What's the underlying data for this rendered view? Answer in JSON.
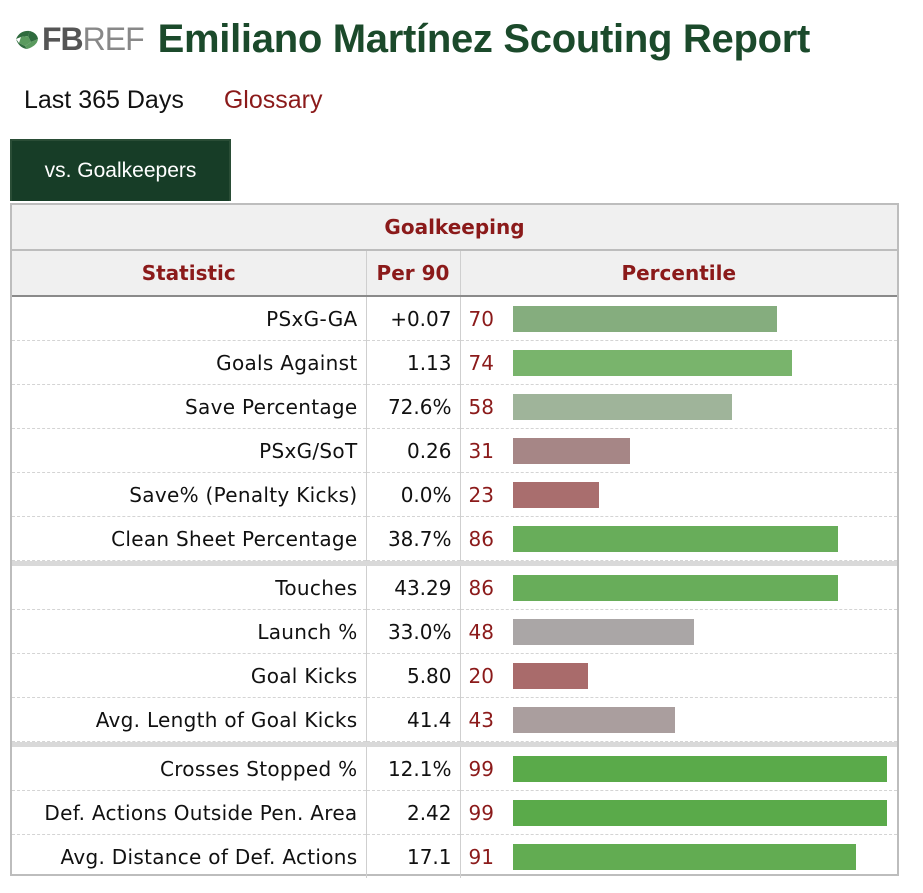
{
  "header": {
    "logo_fb": "FB",
    "logo_ref": "REF",
    "title": "Emiliano Martínez Scouting Report"
  },
  "subnav": {
    "period": "Last 365 Days",
    "glossary": "Glossary"
  },
  "tab": {
    "label": "vs. Goalkeepers"
  },
  "table": {
    "section_title": "Goalkeeping",
    "columns": [
      "Statistic",
      "Per 90",
      "Percentile"
    ],
    "groups": [
      [
        {
          "stat": "PSxG-GA",
          "per90": "+0.07",
          "percentile": 70,
          "color": "#85ad7e"
        },
        {
          "stat": "Goals Against",
          "per90": "1.13",
          "percentile": 74,
          "color": "#79b46c"
        },
        {
          "stat": "Save Percentage",
          "per90": "72.6%",
          "percentile": 58,
          "color": "#9fb49a"
        },
        {
          "stat": "PSxG/SoT",
          "per90": "0.26",
          "percentile": 31,
          "color": "#a68686"
        },
        {
          "stat": "Save% (Penalty Kicks)",
          "per90": "0.0%",
          "percentile": 23,
          "color": "#a96e6e"
        },
        {
          "stat": "Clean Sheet Percentage",
          "per90": "38.7%",
          "percentile": 86,
          "color": "#68ad5a"
        }
      ],
      [
        {
          "stat": "Touches",
          "per90": "43.29",
          "percentile": 86,
          "color": "#68ad5a"
        },
        {
          "stat": "Launch %",
          "per90": "33.0%",
          "percentile": 48,
          "color": "#aaa6a6"
        },
        {
          "stat": "Goal Kicks",
          "per90": "5.80",
          "percentile": 20,
          "color": "#a96b6b"
        },
        {
          "stat": "Avg. Length of Goal Kicks",
          "per90": "41.4",
          "percentile": 43,
          "color": "#aa9e9e"
        }
      ],
      [
        {
          "stat": "Crosses Stopped %",
          "per90": "12.1%",
          "percentile": 99,
          "color": "#5aaa4a"
        },
        {
          "stat": "Def. Actions Outside Pen. Area",
          "per90": "2.42",
          "percentile": 99,
          "color": "#5aaa4a"
        },
        {
          "stat": "Avg. Distance of Def. Actions",
          "per90": "17.1",
          "percentile": 91,
          "color": "#62ac52"
        }
      ]
    ]
  }
}
